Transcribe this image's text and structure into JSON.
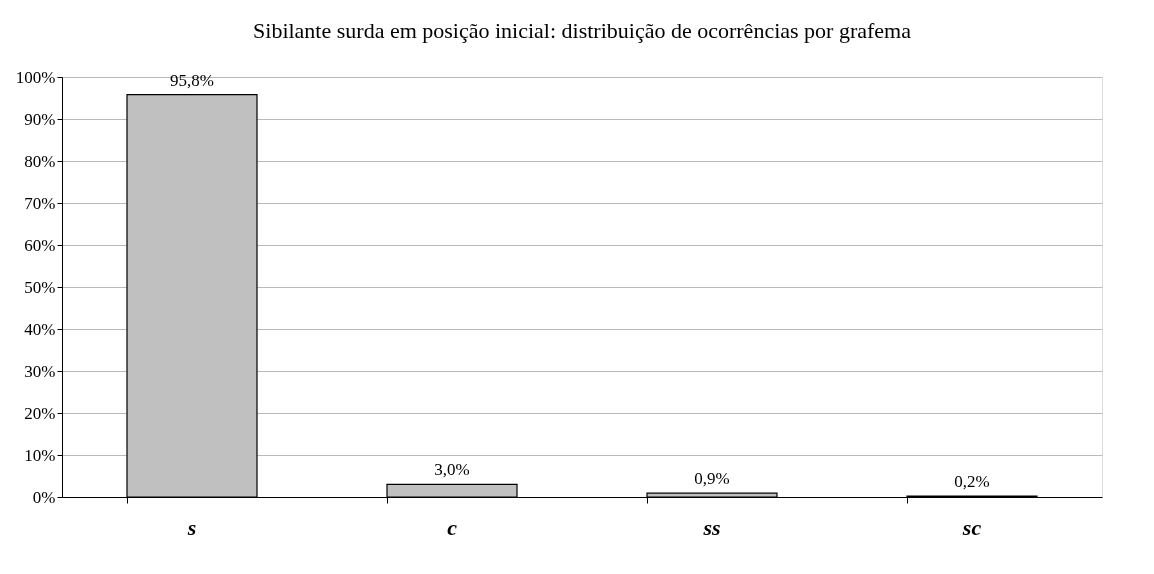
{
  "chart_data": {
    "type": "bar",
    "title": "Sibilante surda em posição inicial: distribuição de ocorrências por grafema",
    "categories": [
      "s",
      "c",
      "ss",
      "sc"
    ],
    "values": [
      95.8,
      3.0,
      0.9,
      0.2
    ],
    "value_labels": [
      "95,8%",
      "3,0%",
      "0,9%",
      "0,2%"
    ],
    "color": "#c0c0c0",
    "ylim": [
      0,
      100
    ],
    "yticks": [
      {
        "value": 0,
        "label": "0%"
      },
      {
        "value": 10,
        "label": "10%"
      },
      {
        "value": 20,
        "label": "20%"
      },
      {
        "value": 30,
        "label": "30%"
      },
      {
        "value": 40,
        "label": "40%"
      },
      {
        "value": 50,
        "label": "50%"
      },
      {
        "value": 60,
        "label": "60%"
      },
      {
        "value": 70,
        "label": "70%"
      },
      {
        "value": 80,
        "label": "80%"
      },
      {
        "value": 90,
        "label": "90%"
      },
      {
        "value": 100,
        "label": "100%"
      }
    ],
    "grid": "y"
  }
}
